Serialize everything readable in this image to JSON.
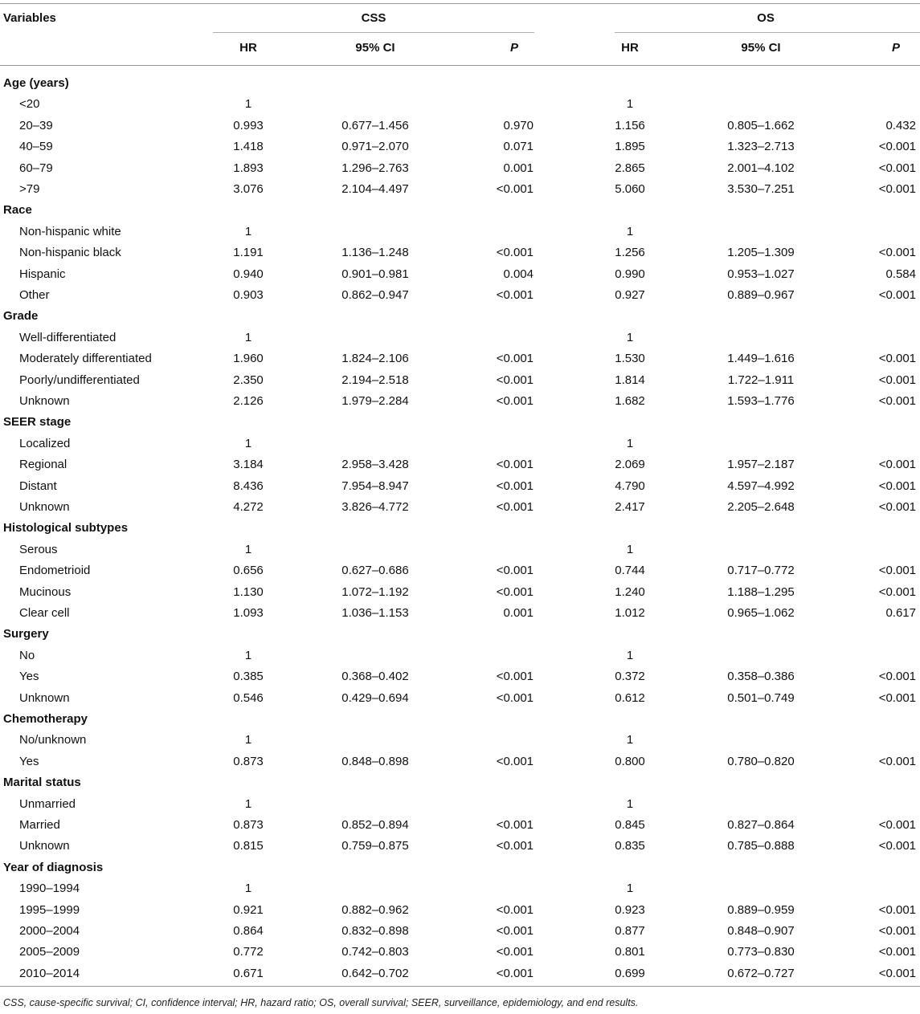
{
  "header": {
    "variables": "Variables",
    "css": "CSS",
    "os": "OS",
    "hr": "HR",
    "ci": "95% CI",
    "p": "P"
  },
  "rows": [
    {
      "type": "group",
      "label": "Age (years)"
    },
    {
      "type": "sub",
      "label": "<20",
      "css_hr": "1",
      "css_ci": "",
      "css_p": "",
      "os_hr": "1",
      "os_ci": "",
      "os_p": ""
    },
    {
      "type": "sub",
      "label": "20–39",
      "css_hr": "0.993",
      "css_ci": "0.677–1.456",
      "css_p": "0.970",
      "os_hr": "1.156",
      "os_ci": "0.805–1.662",
      "os_p": "0.432"
    },
    {
      "type": "sub",
      "label": "40–59",
      "css_hr": "1.418",
      "css_ci": "0.971–2.070",
      "css_p": "0.071",
      "os_hr": "1.895",
      "os_ci": "1.323–2.713",
      "os_p": "<0.001"
    },
    {
      "type": "sub",
      "label": "60–79",
      "css_hr": "1.893",
      "css_ci": "1.296–2.763",
      "css_p": "0.001",
      "os_hr": "2.865",
      "os_ci": "2.001–4.102",
      "os_p": "<0.001"
    },
    {
      "type": "sub",
      "label": ">79",
      "css_hr": "3.076",
      "css_ci": "2.104–4.497",
      "css_p": "<0.001",
      "os_hr": "5.060",
      "os_ci": "3.530–7.251",
      "os_p": "<0.001"
    },
    {
      "type": "group",
      "label": "Race"
    },
    {
      "type": "sub",
      "label": "Non-hispanic white",
      "css_hr": "1",
      "css_ci": "",
      "css_p": "",
      "os_hr": "1",
      "os_ci": "",
      "os_p": ""
    },
    {
      "type": "sub",
      "label": "Non-hispanic black",
      "css_hr": "1.191",
      "css_ci": "1.136–1.248",
      "css_p": "<0.001",
      "os_hr": "1.256",
      "os_ci": "1.205–1.309",
      "os_p": "<0.001"
    },
    {
      "type": "sub",
      "label": "Hispanic",
      "css_hr": "0.940",
      "css_ci": "0.901–0.981",
      "css_p": "0.004",
      "os_hr": "0.990",
      "os_ci": "0.953–1.027",
      "os_p": "0.584"
    },
    {
      "type": "sub",
      "label": "Other",
      "css_hr": "0.903",
      "css_ci": "0.862–0.947",
      "css_p": "<0.001",
      "os_hr": "0.927",
      "os_ci": "0.889–0.967",
      "os_p": "<0.001"
    },
    {
      "type": "group",
      "label": "Grade"
    },
    {
      "type": "sub",
      "label": "Well-differentiated",
      "css_hr": "1",
      "css_ci": "",
      "css_p": "",
      "os_hr": "1",
      "os_ci": "",
      "os_p": ""
    },
    {
      "type": "sub",
      "label": "Moderately differentiated",
      "css_hr": "1.960",
      "css_ci": "1.824–2.106",
      "css_p": "<0.001",
      "os_hr": "1.530",
      "os_ci": "1.449–1.616",
      "os_p": "<0.001"
    },
    {
      "type": "sub",
      "label": "Poorly/undifferentiated",
      "css_hr": "2.350",
      "css_ci": "2.194–2.518",
      "css_p": "<0.001",
      "os_hr": "1.814",
      "os_ci": "1.722–1.911",
      "os_p": "<0.001"
    },
    {
      "type": "sub",
      "label": "Unknown",
      "css_hr": "2.126",
      "css_ci": "1.979–2.284",
      "css_p": "<0.001",
      "os_hr": "1.682",
      "os_ci": "1.593–1.776",
      "os_p": "<0.001"
    },
    {
      "type": "group",
      "label": "SEER stage"
    },
    {
      "type": "sub",
      "label": "Localized",
      "css_hr": "1",
      "css_ci": "",
      "css_p": "",
      "os_hr": "1",
      "os_ci": "",
      "os_p": ""
    },
    {
      "type": "sub",
      "label": "Regional",
      "css_hr": "3.184",
      "css_ci": "2.958–3.428",
      "css_p": "<0.001",
      "os_hr": "2.069",
      "os_ci": "1.957–2.187",
      "os_p": "<0.001"
    },
    {
      "type": "sub",
      "label": "Distant",
      "css_hr": "8.436",
      "css_ci": "7.954–8.947",
      "css_p": "<0.001",
      "os_hr": "4.790",
      "os_ci": "4.597–4.992",
      "os_p": "<0.001"
    },
    {
      "type": "sub",
      "label": "Unknown",
      "css_hr": "4.272",
      "css_ci": "3.826–4.772",
      "css_p": "<0.001",
      "os_hr": "2.417",
      "os_ci": "2.205–2.648",
      "os_p": "<0.001"
    },
    {
      "type": "group",
      "label": "Histological subtypes"
    },
    {
      "type": "sub",
      "label": "Serous",
      "css_hr": "1",
      "css_ci": "",
      "css_p": "",
      "os_hr": "1",
      "os_ci": "",
      "os_p": ""
    },
    {
      "type": "sub",
      "label": "Endometrioid",
      "css_hr": "0.656",
      "css_ci": "0.627–0.686",
      "css_p": "<0.001",
      "os_hr": "0.744",
      "os_ci": "0.717–0.772",
      "os_p": "<0.001"
    },
    {
      "type": "sub",
      "label": "Mucinous",
      "css_hr": "1.130",
      "css_ci": "1.072–1.192",
      "css_p": "<0.001",
      "os_hr": "1.240",
      "os_ci": "1.188–1.295",
      "os_p": "<0.001"
    },
    {
      "type": "sub",
      "label": "Clear cell",
      "css_hr": "1.093",
      "css_ci": "1.036–1.153",
      "css_p": "0.001",
      "os_hr": "1.012",
      "os_ci": "0.965–1.062",
      "os_p": "0.617"
    },
    {
      "type": "group",
      "label": "Surgery"
    },
    {
      "type": "sub",
      "label": "No",
      "css_hr": "1",
      "css_ci": "",
      "css_p": "",
      "os_hr": "1",
      "os_ci": "",
      "os_p": ""
    },
    {
      "type": "sub",
      "label": "Yes",
      "css_hr": "0.385",
      "css_ci": "0.368–0.402",
      "css_p": "<0.001",
      "os_hr": "0.372",
      "os_ci": "0.358–0.386",
      "os_p": "<0.001"
    },
    {
      "type": "sub",
      "label": "Unknown",
      "css_hr": "0.546",
      "css_ci": "0.429–0.694",
      "css_p": "<0.001",
      "os_hr": "0.612",
      "os_ci": "0.501–0.749",
      "os_p": "<0.001"
    },
    {
      "type": "group",
      "label": "Chemotherapy"
    },
    {
      "type": "sub",
      "label": "No/unknown",
      "css_hr": "1",
      "css_ci": "",
      "css_p": "",
      "os_hr": "1",
      "os_ci": "",
      "os_p": ""
    },
    {
      "type": "sub",
      "label": "Yes",
      "css_hr": "0.873",
      "css_ci": "0.848–0.898",
      "css_p": "<0.001",
      "os_hr": "0.800",
      "os_ci": "0.780–0.820",
      "os_p": "<0.001"
    },
    {
      "type": "group",
      "label": "Marital status"
    },
    {
      "type": "sub",
      "label": "Unmarried",
      "css_hr": "1",
      "css_ci": "",
      "css_p": "",
      "os_hr": "1",
      "os_ci": "",
      "os_p": ""
    },
    {
      "type": "sub",
      "label": "Married",
      "css_hr": "0.873",
      "css_ci": "0.852–0.894",
      "css_p": "<0.001",
      "os_hr": "0.845",
      "os_ci": "0.827–0.864",
      "os_p": "<0.001"
    },
    {
      "type": "sub",
      "label": "Unknown",
      "css_hr": "0.815",
      "css_ci": "0.759–0.875",
      "css_p": "<0.001",
      "os_hr": "0.835",
      "os_ci": "0.785–0.888",
      "os_p": "<0.001"
    },
    {
      "type": "group",
      "label": "Year of diagnosis"
    },
    {
      "type": "sub",
      "label": "1990–1994",
      "css_hr": "1",
      "css_ci": "",
      "css_p": "",
      "os_hr": "1",
      "os_ci": "",
      "os_p": ""
    },
    {
      "type": "sub",
      "label": "1995–1999",
      "css_hr": "0.921",
      "css_ci": "0.882–0.962",
      "css_p": "<0.001",
      "os_hr": "0.923",
      "os_ci": "0.889–0.959",
      "os_p": "<0.001"
    },
    {
      "type": "sub",
      "label": "2000–2004",
      "css_hr": "0.864",
      "css_ci": "0.832–0.898",
      "css_p": "<0.001",
      "os_hr": "0.877",
      "os_ci": "0.848–0.907",
      "os_p": "<0.001"
    },
    {
      "type": "sub",
      "label": "2005–2009",
      "css_hr": "0.772",
      "css_ci": "0.742–0.803",
      "css_p": "<0.001",
      "os_hr": "0.801",
      "os_ci": "0.773–0.830",
      "os_p": "<0.001"
    },
    {
      "type": "sub",
      "label": "2010–2014",
      "css_hr": "0.671",
      "css_ci": "0.642–0.702",
      "css_p": "<0.001",
      "os_hr": "0.699",
      "os_ci": "0.672–0.727",
      "os_p": "<0.001"
    }
  ],
  "footnote": "CSS, cause-specific survival; CI, confidence interval; HR, hazard ratio; OS, overall survival; SEER, surveillance, epidemiology, and end results."
}
